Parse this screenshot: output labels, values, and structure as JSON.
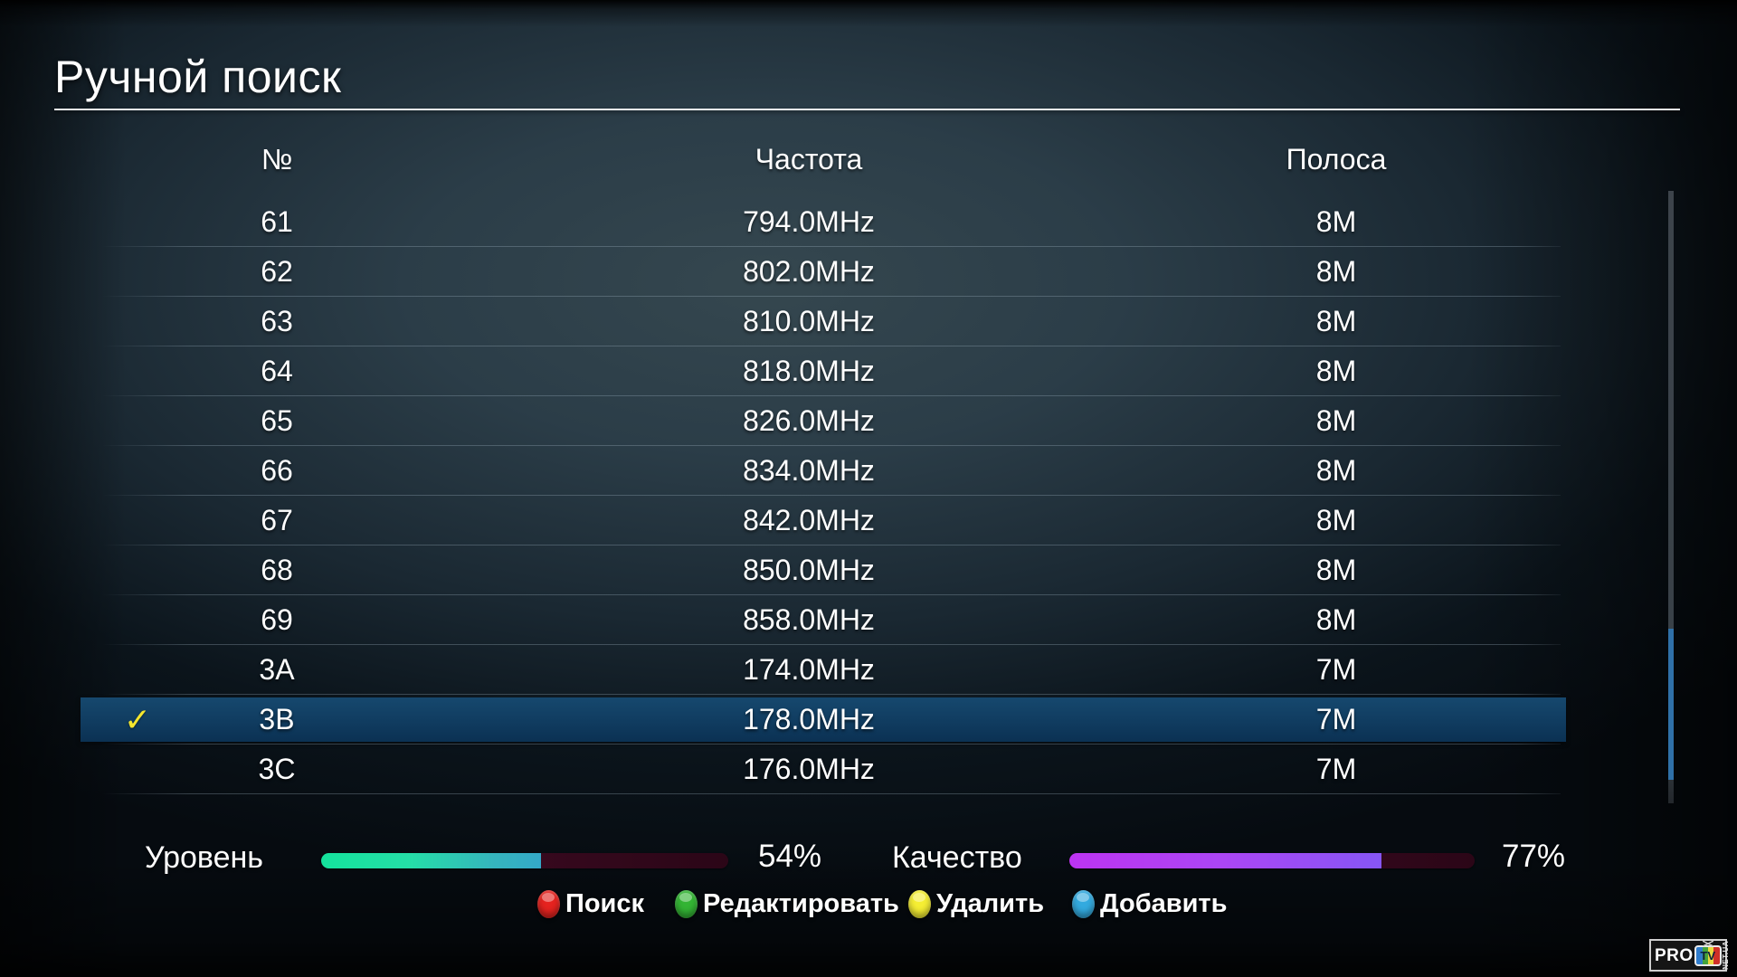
{
  "app": {
    "title": "Ручной поиск"
  },
  "table": {
    "columns": [
      "№",
      "Частота",
      "Полоса"
    ],
    "check_glyph": "✓",
    "rows": [
      {
        "num": "61",
        "freq": "794.0MHz",
        "band": "8M",
        "selected": false
      },
      {
        "num": "62",
        "freq": "802.0MHz",
        "band": "8M",
        "selected": false
      },
      {
        "num": "63",
        "freq": "810.0MHz",
        "band": "8M",
        "selected": false
      },
      {
        "num": "64",
        "freq": "818.0MHz",
        "band": "8M",
        "selected": false
      },
      {
        "num": "65",
        "freq": "826.0MHz",
        "band": "8M",
        "selected": false
      },
      {
        "num": "66",
        "freq": "834.0MHz",
        "band": "8M",
        "selected": false
      },
      {
        "num": "67",
        "freq": "842.0MHz",
        "band": "8M",
        "selected": false
      },
      {
        "num": "68",
        "freq": "850.0MHz",
        "band": "8M",
        "selected": false
      },
      {
        "num": "69",
        "freq": "858.0MHz",
        "band": "8M",
        "selected": false
      },
      {
        "num": "3A",
        "freq": "174.0MHz",
        "band": "7M",
        "selected": false
      },
      {
        "num": "3B",
        "freq": "178.0MHz",
        "band": "7M",
        "selected": true
      },
      {
        "num": "3C",
        "freq": "176.0MHz",
        "band": "7M",
        "selected": false
      }
    ]
  },
  "signal": {
    "level_label": "Уровень",
    "level_value": "54%",
    "level_percent": 54,
    "quality_label": "Качество",
    "quality_value": "77%",
    "quality_percent": 77
  },
  "key_hints": [
    {
      "key": "red",
      "color": "#e5231f",
      "label": "Поиск"
    },
    {
      "key": "green",
      "color": "#33b434",
      "label": "Редактировать"
    },
    {
      "key": "yellow",
      "color": "#f5ee33",
      "label": "Удалить"
    },
    {
      "key": "blue",
      "color": "#33aadf",
      "label": "Добавить"
    }
  ],
  "logo": {
    "pro": "PRO",
    "tv": "TV",
    "suffix": "NET.UA"
  },
  "colors": {
    "selected_row": "#113d61",
    "check": "#f5e62e",
    "level_fill_start": "#14e39c",
    "level_fill_end": "#34a9c8",
    "quality_fill_start": "#bd34f2",
    "quality_fill_end": "#8656f4",
    "bar_track": "#30081a",
    "scrollbar_thumb": "#2f70a8",
    "divider": "#ffffff"
  }
}
